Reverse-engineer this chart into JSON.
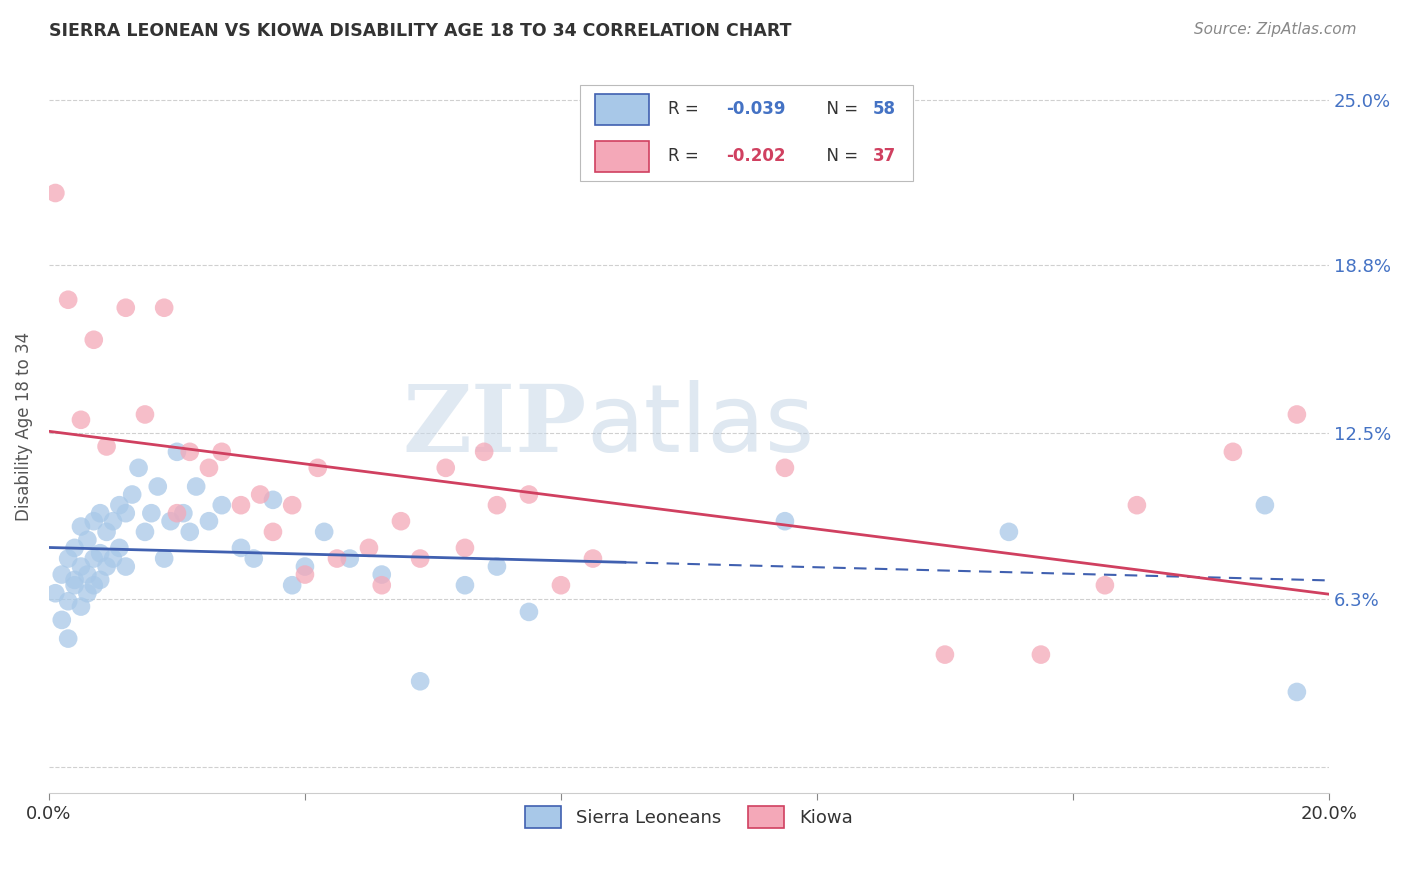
{
  "title": "SIERRA LEONEAN VS KIOWA DISABILITY AGE 18 TO 34 CORRELATION CHART",
  "source": "Source: ZipAtlas.com",
  "ylabel": "Disability Age 18 to 34",
  "xlim": [
    0.0,
    0.2
  ],
  "ylim": [
    -0.01,
    0.265
  ],
  "xticks": [
    0.0,
    0.04,
    0.08,
    0.12,
    0.16,
    0.2
  ],
  "xticklabels": [
    "0.0%",
    "",
    "",
    "",
    "",
    "20.0%"
  ],
  "yticks": [
    0.0,
    0.063,
    0.125,
    0.188,
    0.25
  ],
  "yticklabels": [
    "",
    "6.3%",
    "12.5%",
    "18.8%",
    "25.0%"
  ],
  "legend_labels": [
    "Sierra Leoneans",
    "Kiowa"
  ],
  "r1": "-0.039",
  "n1": "58",
  "r2": "-0.202",
  "n2": "37",
  "series1_color": "#a8c8e8",
  "series2_color": "#f4a8b8",
  "series1_line_color": "#4060b0",
  "series2_line_color": "#d04060",
  "watermark_zip": "ZIP",
  "watermark_atlas": "atlas",
  "background_color": "#ffffff",
  "grid_color": "#d0d0d0",
  "blue_scatter_x": [
    0.001,
    0.002,
    0.002,
    0.003,
    0.003,
    0.003,
    0.004,
    0.004,
    0.004,
    0.005,
    0.005,
    0.005,
    0.006,
    0.006,
    0.006,
    0.007,
    0.007,
    0.007,
    0.008,
    0.008,
    0.008,
    0.009,
    0.009,
    0.01,
    0.01,
    0.011,
    0.011,
    0.012,
    0.012,
    0.013,
    0.014,
    0.015,
    0.016,
    0.017,
    0.018,
    0.019,
    0.02,
    0.021,
    0.022,
    0.023,
    0.025,
    0.027,
    0.03,
    0.032,
    0.035,
    0.038,
    0.04,
    0.043,
    0.047,
    0.052,
    0.058,
    0.065,
    0.07,
    0.075,
    0.115,
    0.15,
    0.19,
    0.195
  ],
  "blue_scatter_y": [
    0.065,
    0.072,
    0.055,
    0.078,
    0.062,
    0.048,
    0.068,
    0.082,
    0.07,
    0.075,
    0.06,
    0.09,
    0.072,
    0.065,
    0.085,
    0.078,
    0.068,
    0.092,
    0.08,
    0.07,
    0.095,
    0.075,
    0.088,
    0.078,
    0.092,
    0.082,
    0.098,
    0.075,
    0.095,
    0.102,
    0.112,
    0.088,
    0.095,
    0.105,
    0.078,
    0.092,
    0.118,
    0.095,
    0.088,
    0.105,
    0.092,
    0.098,
    0.082,
    0.078,
    0.1,
    0.068,
    0.075,
    0.088,
    0.078,
    0.072,
    0.032,
    0.068,
    0.075,
    0.058,
    0.092,
    0.088,
    0.098,
    0.028
  ],
  "pink_scatter_x": [
    0.001,
    0.003,
    0.005,
    0.007,
    0.009,
    0.012,
    0.015,
    0.018,
    0.02,
    0.022,
    0.025,
    0.027,
    0.03,
    0.033,
    0.035,
    0.038,
    0.04,
    0.042,
    0.045,
    0.05,
    0.052,
    0.055,
    0.058,
    0.062,
    0.065,
    0.068,
    0.07,
    0.075,
    0.08,
    0.085,
    0.115,
    0.14,
    0.155,
    0.165,
    0.17,
    0.185,
    0.195
  ],
  "pink_scatter_y": [
    0.215,
    0.175,
    0.13,
    0.16,
    0.12,
    0.172,
    0.132,
    0.172,
    0.095,
    0.118,
    0.112,
    0.118,
    0.098,
    0.102,
    0.088,
    0.098,
    0.072,
    0.112,
    0.078,
    0.082,
    0.068,
    0.092,
    0.078,
    0.112,
    0.082,
    0.118,
    0.098,
    0.102,
    0.068,
    0.078,
    0.112,
    0.042,
    0.042,
    0.068,
    0.098,
    0.118,
    0.132
  ]
}
